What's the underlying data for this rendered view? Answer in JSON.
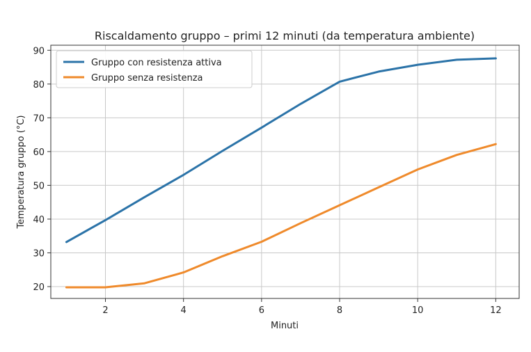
{
  "chart_data": {
    "type": "line",
    "title": "Riscaldamento gruppo – primi 12 minuti (da temperatura ambiente)",
    "xlabel": "Minuti",
    "ylabel": "Temperatura gruppo (°C)",
    "xlim": [
      0.6,
      12.6
    ],
    "ylim": [
      16.5,
      91.5
    ],
    "xticks": [
      2,
      4,
      6,
      8,
      10,
      12
    ],
    "yticks": [
      20,
      30,
      40,
      50,
      60,
      70,
      80,
      90
    ],
    "grid": true,
    "legend_position": "top-left",
    "x": [
      1,
      2,
      3,
      4,
      5,
      6,
      7,
      8,
      9,
      10,
      11,
      12
    ],
    "series": [
      {
        "name": "Gruppo con resistenza attiva",
        "color": "#2b73a8",
        "values": [
          33.2,
          39.7,
          46.5,
          53.1,
          60.2,
          67.1,
          74.1,
          80.7,
          83.7,
          85.7,
          87.2,
          87.6
        ]
      },
      {
        "name": "Gruppo senza resistenza",
        "color": "#ef8a2b",
        "values": [
          19.8,
          19.8,
          21.0,
          24.2,
          29.0,
          33.3,
          38.8,
          44.1,
          49.4,
          54.7,
          59.0,
          62.2
        ]
      }
    ]
  }
}
